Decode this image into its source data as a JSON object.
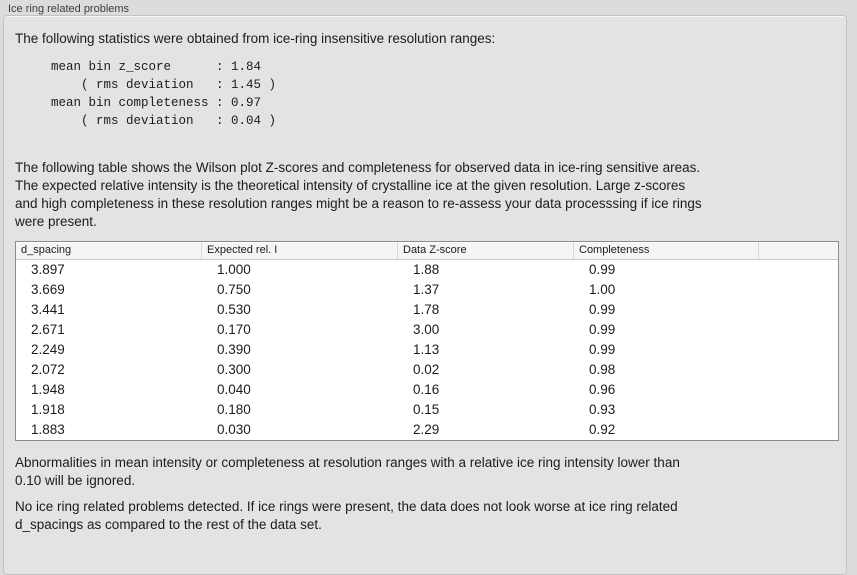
{
  "panel": {
    "title": "Ice ring related problems"
  },
  "intro": {
    "text": "The following statistics were obtained from ice-ring insensitive resolution ranges:"
  },
  "stats": {
    "lines": [
      "mean bin z_score      : 1.84",
      "    ( rms deviation   : 1.45 )",
      "mean bin completeness : 0.97",
      "    ( rms deviation   : 0.04 )"
    ],
    "mean_bin_z_score": "1.84",
    "z_score_rms_deviation": "1.45",
    "mean_bin_completeness": "0.97",
    "completeness_rms_deviation": "0.04"
  },
  "description": {
    "lines": [
      "The following table shows the Wilson plot Z-scores and completeness for observed data in ice-ring sensitive areas.",
      "The expected relative intensity is the theoretical intensity of crystalline ice at the given resolution. Large z-scores",
      "and high completeness in these resolution ranges might be a reason to re-assess your data processsing if ice rings",
      "were present."
    ]
  },
  "table": {
    "headers": [
      "d_spacing",
      "Expected rel. I",
      "Data Z-score",
      "Completeness",
      ""
    ],
    "rows": [
      [
        "3.897",
        "1.000",
        "1.88",
        "0.99"
      ],
      [
        "3.669",
        "0.750",
        "1.37",
        "1.00"
      ],
      [
        "3.441",
        "0.530",
        "1.78",
        "0.99"
      ],
      [
        "2.671",
        "0.170",
        "3.00",
        "0.99"
      ],
      [
        "2.249",
        "0.390",
        "1.13",
        "0.99"
      ],
      [
        "2.072",
        "0.300",
        "0.02",
        "0.98"
      ],
      [
        "1.948",
        "0.040",
        "0.16",
        "0.96"
      ],
      [
        "1.918",
        "0.180",
        "0.15",
        "0.93"
      ],
      [
        "1.883",
        "0.030",
        "2.29",
        "0.92"
      ]
    ]
  },
  "notes": {
    "ignore_lines": [
      "Abnormalities in mean intensity or completeness at resolution ranges with a relative ice ring intensity lower than",
      "0.10 will be ignored."
    ],
    "conclusion_lines": [
      "No ice ring related problems detected. If ice rings were present, the data does not look worse at ice ring related",
      "d_spacings as compared to the rest of the data set."
    ]
  },
  "colors": {
    "background": "#e3e3e3",
    "table_background": "#ffffff",
    "table_border": "#8c8c8c",
    "text": "#1c1c1c"
  }
}
